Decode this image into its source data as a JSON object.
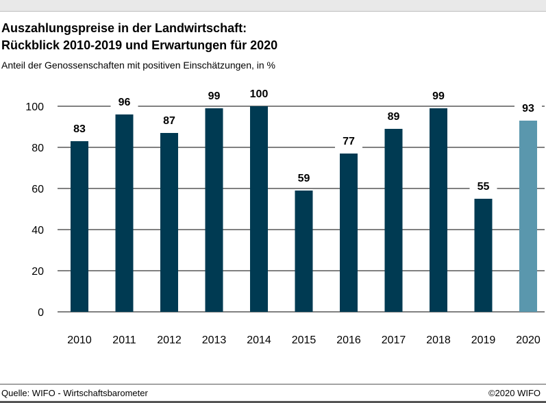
{
  "header": {
    "title_line1": "Auszahlungspreise in der Landwirtschaft:",
    "title_line2": "Rückblick 2010-2019 und Erwartungen für 2020",
    "subtitle": "Anteil der Genossenschaften mit positiven Einschätzungen, in %"
  },
  "footer": {
    "source": "Quelle: WIFO - Wirtschaftsbarometer",
    "copyright": "©2020 WIFO"
  },
  "chart_data": {
    "type": "bar",
    "title": "Auszahlungspreise in der Landwirtschaft: Rückblick 2010-2019 und Erwartungen für 2020",
    "subtitle": "Anteil der Genossenschaften mit positiven Einschätzungen, in %",
    "categories": [
      "2010",
      "2011",
      "2012",
      "2013",
      "2014",
      "2015",
      "2016",
      "2017",
      "2018",
      "2019",
      "2020"
    ],
    "values": [
      83,
      96,
      87,
      99,
      100,
      59,
      77,
      89,
      99,
      55,
      93
    ],
    "ylim": [
      0,
      100
    ],
    "yticks": [
      0,
      20,
      40,
      60,
      80,
      100
    ],
    "grid": true,
    "legend": "none",
    "colors": {
      "bar": "#003a52",
      "bar_forecast": "#5a97ad",
      "grid": "#000000"
    },
    "forecast_categories": [
      "2020"
    ]
  }
}
